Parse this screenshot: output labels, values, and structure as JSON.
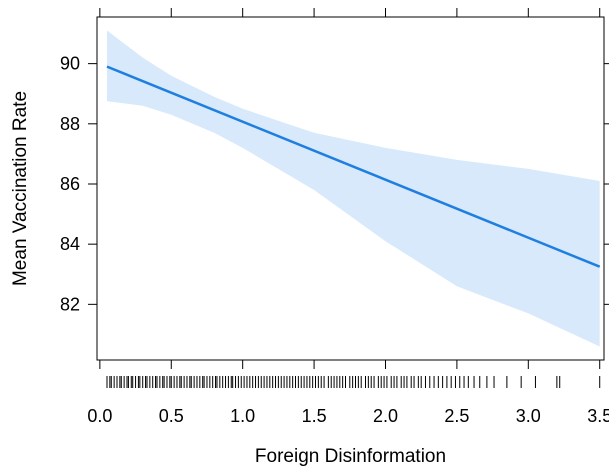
{
  "chart_data": {
    "type": "line",
    "title": "",
    "xlabel": "Foreign Disinformation",
    "ylabel": "Mean Vaccination Rate",
    "xlim": [
      -0.02,
      3.53
    ],
    "ylim": [
      80.15,
      91.55
    ],
    "x_ticks": [
      0.0,
      0.5,
      1.0,
      1.5,
      2.0,
      2.5,
      3.0,
      3.5
    ],
    "x_tick_labels": [
      "0.0",
      "0.5",
      "1.0",
      "1.5",
      "2.0",
      "2.5",
      "3.0",
      "3.5"
    ],
    "y_ticks": [
      82,
      84,
      86,
      88,
      90
    ],
    "y_tick_labels": [
      "82",
      "84",
      "86",
      "88",
      "90"
    ],
    "grid": false,
    "legend": "none",
    "series": [
      {
        "x": [
          0.05,
          3.5
        ],
        "y": [
          89.9,
          83.25
        ]
      }
    ],
    "confidence_band": {
      "x": [
        0.05,
        0.3,
        0.5,
        0.8,
        1.0,
        1.5,
        2.0,
        2.5,
        3.0,
        3.5
      ],
      "upper": [
        91.1,
        90.2,
        89.6,
        88.9,
        88.5,
        87.7,
        87.2,
        86.8,
        86.5,
        86.1
      ],
      "lower": [
        88.75,
        88.6,
        88.3,
        87.7,
        87.2,
        85.8,
        84.1,
        82.6,
        81.7,
        80.6
      ]
    },
    "rug_x": [
      0.05,
      0.07,
      0.08,
      0.1,
      0.12,
      0.14,
      0.15,
      0.17,
      0.19,
      0.2,
      0.22,
      0.23,
      0.25,
      0.27,
      0.28,
      0.3,
      0.32,
      0.33,
      0.35,
      0.37,
      0.39,
      0.4,
      0.42,
      0.44,
      0.45,
      0.47,
      0.49,
      0.5,
      0.52,
      0.54,
      0.56,
      0.57,
      0.59,
      0.61,
      0.63,
      0.64,
      0.66,
      0.68,
      0.7,
      0.72,
      0.73,
      0.75,
      0.77,
      0.79,
      0.81,
      0.82,
      0.84,
      0.86,
      0.88,
      0.9,
      0.92,
      0.93,
      0.95,
      0.97,
      0.99,
      1.01,
      1.03,
      1.05,
      1.07,
      1.09,
      1.11,
      1.13,
      1.15,
      1.17,
      1.19,
      1.21,
      1.23,
      1.25,
      1.27,
      1.29,
      1.31,
      1.33,
      1.35,
      1.37,
      1.39,
      1.41,
      1.43,
      1.45,
      1.47,
      1.49,
      1.51,
      1.53,
      1.55,
      1.57,
      1.6,
      1.62,
      1.64,
      1.66,
      1.68,
      1.7,
      1.72,
      1.75,
      1.77,
      1.79,
      1.81,
      1.83,
      1.86,
      1.88,
      1.9,
      1.92,
      1.95,
      1.97,
      1.99,
      2.01,
      2.04,
      2.06,
      2.08,
      2.11,
      2.13,
      2.15,
      2.18,
      2.2,
      2.23,
      2.25,
      2.28,
      2.31,
      2.34,
      2.37,
      2.4,
      2.43,
      2.46,
      2.49,
      2.52,
      2.55,
      2.58,
      2.62,
      2.66,
      2.71,
      2.76,
      2.85,
      2.95,
      3.05,
      3.2,
      3.22,
      3.5
    ],
    "colors": {
      "line": "#1f7fe0",
      "band": "#d8e9fb",
      "axes": "#000000",
      "rug": "#000000"
    }
  }
}
